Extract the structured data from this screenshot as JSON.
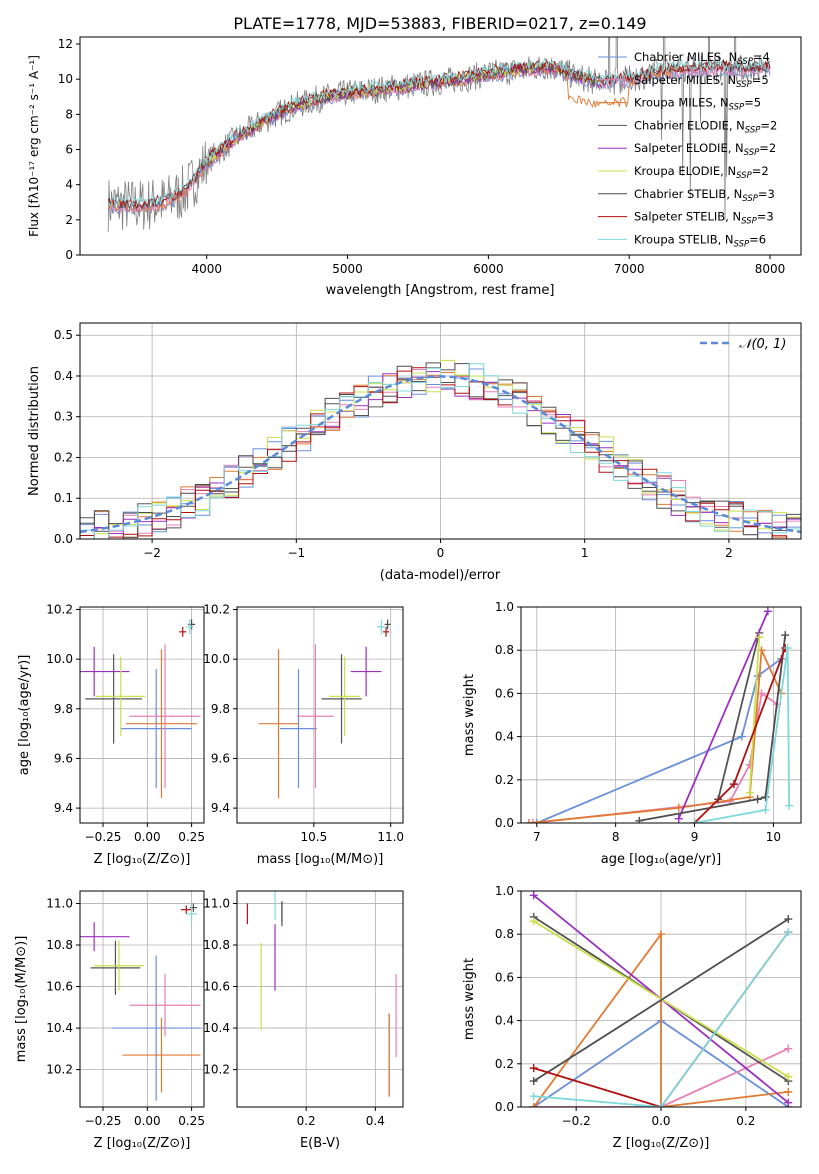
{
  "figure": {
    "title": "PLATE=1778, MJD=53883, FIBERID=0217, z=0.149"
  },
  "colors": {
    "axis": "#000000",
    "grid": "#b0b0b0",
    "gaussian": "#5b8bd6",
    "data_spectrum": "#7f7f7f",
    "series": {
      "chabrier_miles": "#6a8fd8",
      "salpeter_miles": "#e87fb5",
      "kroupa_miles": "#e07a33",
      "chabrier_elodie": "#555555",
      "salpeter_elodie": "#9b30c0",
      "kroupa_elodie": "#c9e04c",
      "chabrier_stelib": "#4d4d4d",
      "salpeter_stelib": "#b01010",
      "kroupa_stelib": "#7fd8dc"
    }
  },
  "legend_entries": [
    {
      "label": "Chabrier MILES, N",
      "sub": "SSP",
      "suffix": "=4",
      "key": "chabrier_miles"
    },
    {
      "label": "Salpeter MILES, N",
      "sub": "SSP",
      "suffix": "=5",
      "key": "salpeter_miles"
    },
    {
      "label": "Kroupa MILES, N",
      "sub": "SSP",
      "suffix": "=5",
      "key": "kroupa_miles"
    },
    {
      "label": "Chabrier ELODIE, N",
      "sub": "SSP",
      "suffix": "=2",
      "key": "chabrier_elodie"
    },
    {
      "label": "Salpeter ELODIE, N",
      "sub": "SSP",
      "suffix": "=2",
      "key": "salpeter_elodie"
    },
    {
      "label": "Kroupa ELODIE, N",
      "sub": "SSP",
      "suffix": "=2",
      "key": "kroupa_elodie"
    },
    {
      "label": "Chabrier STELIB, N",
      "sub": "SSP",
      "suffix": "=3",
      "key": "chabrier_stelib"
    },
    {
      "label": "Salpeter STELIB, N",
      "sub": "SSP",
      "suffix": "=3",
      "key": "salpeter_stelib"
    },
    {
      "label": "Kroupa STELIB, N",
      "sub": "SSP",
      "suffix": "=6",
      "key": "kroupa_stelib"
    }
  ],
  "chart_data": [
    {
      "id": "spectrum",
      "type": "line",
      "xlabel": "wavelength [Angstrom, rest frame]",
      "ylabel": "Flux [fλ10⁻¹⁷ erg cm⁻² s⁻¹ A⁻¹]",
      "xlim": [
        3100,
        8220
      ],
      "ylim": [
        0,
        12.4
      ],
      "xticks": [
        4000,
        5000,
        6000,
        7000,
        8000
      ],
      "yticks": [
        0,
        2,
        4,
        6,
        8,
        10,
        12
      ],
      "grid": false,
      "legend": "top-right",
      "continuum": {
        "x": [
          3300,
          3500,
          3700,
          3850,
          4000,
          4200,
          4400,
          4600,
          4800,
          5000,
          5200,
          5400,
          5600,
          5800,
          6000,
          6200,
          6400,
          6500,
          6600,
          6800,
          7000,
          7200,
          7400
        ],
        "y": [
          2.9,
          2.8,
          3.0,
          3.6,
          5.3,
          6.6,
          7.6,
          8.4,
          8.9,
          9.2,
          9.4,
          9.6,
          9.8,
          10.0,
          10.3,
          10.5,
          10.7,
          10.6,
          10.2,
          9.8,
          10.0,
          10.4,
          10.6
        ]
      }
    },
    {
      "id": "residual-histogram",
      "type": "bar",
      "xlabel": "(data-model)/error",
      "ylabel": "Normed distribution",
      "xlim": [
        -2.5,
        2.5
      ],
      "ylim": [
        0,
        0.53
      ],
      "xticks": [
        -2,
        -1,
        0,
        1,
        2
      ],
      "yticks": [
        0.0,
        0.1,
        0.2,
        0.3,
        0.4,
        0.5
      ],
      "grid": true,
      "legend": "top-right",
      "gaussian_label": "𝒩(0, 1)",
      "bin_width": 0.1,
      "bin_start": -2.5
    },
    {
      "id": "age-vs-Z",
      "type": "scatter",
      "xlabel": "Z [log₁₀(Z/Z⊙)]",
      "ylabel": "age  [log₁₀(age/yr)]",
      "xlim": [
        -0.38,
        0.32
      ],
      "ylim": [
        9.34,
        10.21
      ],
      "xticks": [
        -0.25,
        0.0,
        0.25
      ],
      "xticklabels": [
        "−0.25",
        "0.00",
        "0.25"
      ],
      "yticks": [
        9.4,
        9.6,
        9.8,
        10.0,
        10.2
      ],
      "grid": true,
      "points": [
        {
          "key": "chabrier_miles",
          "x": 0.05,
          "xerr": 0.2,
          "y": 9.72,
          "yerr": 0.24
        },
        {
          "key": "salpeter_miles",
          "x": 0.1,
          "xerr": 0.2,
          "y": 9.77,
          "yerr": 0.29
        },
        {
          "key": "kroupa_miles",
          "x": 0.08,
          "xerr": 0.2,
          "y": 9.74,
          "yerr": 0.3
        },
        {
          "key": "chabrier_elodie",
          "x": -0.19,
          "xerr": 0.16,
          "y": 9.84,
          "yerr": 0.18
        },
        {
          "key": "salpeter_elodie",
          "x": -0.3,
          "xerr": 0.2,
          "y": 9.95,
          "yerr": 0.1
        },
        {
          "key": "kroupa_elodie",
          "x": -0.15,
          "xerr": 0.14,
          "y": 9.85,
          "yerr": 0.16
        },
        {
          "key": "chabrier_stelib",
          "x": 0.25,
          "xerr": 0.02,
          "y": 10.14,
          "yerr": 0.02
        },
        {
          "key": "salpeter_stelib",
          "x": 0.2,
          "xerr": 0.02,
          "y": 10.11,
          "yerr": 0.02
        },
        {
          "key": "kroupa_stelib",
          "x": 0.24,
          "xerr": 0.02,
          "y": 10.13,
          "yerr": 0.03
        }
      ]
    },
    {
      "id": "age-vs-mass",
      "type": "scatter",
      "xlabel": "mass [log₁₀(M/M⊙)]",
      "xlim": [
        10.0,
        11.08
      ],
      "ylim": [
        9.34,
        10.21
      ],
      "xticks": [
        10.5,
        11.0
      ],
      "xticklabels": [
        "10.5",
        "11.0"
      ],
      "yticks": [
        9.4,
        9.6,
        9.8,
        10.0,
        10.2
      ],
      "grid": true,
      "points": [
        {
          "key": "chabrier_miles",
          "x": 10.4,
          "xerr": 0.12,
          "y": 9.72,
          "yerr": 0.24
        },
        {
          "key": "salpeter_miles",
          "x": 10.51,
          "xerr": 0.12,
          "y": 9.77,
          "yerr": 0.29
        },
        {
          "key": "kroupa_miles",
          "x": 10.27,
          "xerr": 0.13,
          "y": 9.74,
          "yerr": 0.3
        },
        {
          "key": "chabrier_elodie",
          "x": 10.68,
          "xerr": 0.13,
          "y": 9.84,
          "yerr": 0.18
        },
        {
          "key": "salpeter_elodie",
          "x": 10.84,
          "xerr": 0.1,
          "y": 9.95,
          "yerr": 0.1
        },
        {
          "key": "kroupa_elodie",
          "x": 10.7,
          "xerr": 0.1,
          "y": 9.85,
          "yerr": 0.16
        },
        {
          "key": "chabrier_stelib",
          "x": 10.98,
          "xerr": 0.02,
          "y": 10.14,
          "yerr": 0.02
        },
        {
          "key": "salpeter_stelib",
          "x": 10.97,
          "xerr": 0.02,
          "y": 10.11,
          "yerr": 0.02
        },
        {
          "key": "kroupa_stelib",
          "x": 10.94,
          "xerr": 0.03,
          "y": 10.13,
          "yerr": 0.03
        }
      ]
    },
    {
      "id": "mass-weight-vs-age",
      "type": "line",
      "xlabel": "age  [log₁₀(age/yr)]",
      "ylabel": "mass weight",
      "xlim": [
        6.8,
        10.35
      ],
      "ylim": [
        0,
        1.0
      ],
      "xticks": [
        7,
        8,
        9,
        10
      ],
      "yticks": [
        0.0,
        0.2,
        0.4,
        0.6,
        0.8,
        1.0
      ],
      "grid": true,
      "series": [
        {
          "key": "chabrier_miles",
          "x": [
            7.0,
            9.6,
            9.8,
            10.1
          ],
          "y": [
            0.0,
            0.4,
            0.68,
            0.76
          ]
        },
        {
          "key": "salpeter_miles",
          "x": [
            6.95,
            9.45,
            9.7,
            9.85,
            10.05
          ],
          "y": [
            0.0,
            0.1,
            0.27,
            0.6,
            0.55
          ]
        },
        {
          "key": "kroupa_miles",
          "x": [
            6.9,
            8.8,
            9.7,
            9.85,
            10.1
          ],
          "y": [
            0.0,
            0.07,
            0.12,
            0.8,
            0.6
          ]
        },
        {
          "key": "chabrier_elodie",
          "x": [
            9.3,
            9.82
          ],
          "y": [
            0.11,
            0.88
          ]
        },
        {
          "key": "salpeter_elodie",
          "x": [
            8.8,
            9.93
          ],
          "y": [
            0.02,
            0.98
          ]
        },
        {
          "key": "kroupa_elodie",
          "x": [
            9.7,
            9.82
          ],
          "y": [
            0.14,
            0.86
          ]
        },
        {
          "key": "chabrier_stelib",
          "x": [
            8.3,
            9.8,
            9.9,
            10.15
          ],
          "y": [
            0.01,
            0.11,
            0.12,
            0.87
          ]
        },
        {
          "key": "salpeter_stelib",
          "x": [
            9.0,
            9.5,
            10.15
          ],
          "y": [
            0.0,
            0.18,
            0.81
          ]
        },
        {
          "key": "kroupa_stelib",
          "x": [
            9.0,
            9.9,
            10.18,
            10.2
          ],
          "y": [
            0.0,
            0.06,
            0.81,
            0.08
          ]
        }
      ]
    },
    {
      "id": "mass-vs-Z",
      "type": "scatter",
      "xlabel": "Z [log₁₀(Z/Z⊙)]",
      "ylabel": "mass [log₁₀(M/M⊙)]",
      "xlim": [
        -0.38,
        0.32
      ],
      "ylim": [
        10.02,
        11.06
      ],
      "xticks": [
        -0.25,
        0.0,
        0.25
      ],
      "xticklabels": [
        "−0.25",
        "0.00",
        "0.25"
      ],
      "yticks": [
        10.2,
        10.4,
        10.6,
        10.8,
        11.0
      ],
      "grid": true,
      "points": [
        {
          "key": "chabrier_miles",
          "x": 0.05,
          "xerr": 0.25,
          "y": 10.4,
          "yerr": 0.35
        },
        {
          "key": "salpeter_miles",
          "x": 0.1,
          "xerr": 0.2,
          "y": 10.51,
          "yerr": 0.15
        },
        {
          "key": "kroupa_miles",
          "x": 0.08,
          "xerr": 0.22,
          "y": 10.27,
          "yerr": 0.18
        },
        {
          "key": "chabrier_elodie",
          "x": -0.18,
          "xerr": 0.14,
          "y": 10.69,
          "yerr": 0.13
        },
        {
          "key": "salpeter_elodie",
          "x": -0.3,
          "xerr": 0.2,
          "y": 10.84,
          "yerr": 0.07
        },
        {
          "key": "kroupa_elodie",
          "x": -0.16,
          "xerr": 0.14,
          "y": 10.7,
          "yerr": 0.12
        },
        {
          "key": "chabrier_stelib",
          "x": 0.26,
          "xerr": 0.02,
          "y": 10.98,
          "yerr": 0.02
        },
        {
          "key": "salpeter_stelib",
          "x": 0.22,
          "xerr": 0.03,
          "y": 10.97,
          "yerr": 0.02
        },
        {
          "key": "kroupa_stelib",
          "x": 0.25,
          "xerr": 0.03,
          "y": 10.95,
          "yerr": 0.04
        }
      ]
    },
    {
      "id": "mass-vs-EBV",
      "type": "scatter",
      "xlabel": "E(B-V)",
      "xlim": [
        0.0,
        0.48
      ],
      "ylim": [
        10.02,
        11.06
      ],
      "xticks": [
        0.2,
        0.4
      ],
      "xticklabels": [
        "0.2",
        "0.4"
      ],
      "yticks": [
        10.2,
        10.4,
        10.6,
        10.8,
        11.0
      ],
      "grid": true,
      "points": [
        {
          "key": "chabrier_miles",
          "x": 0.44,
          "xerr": 0.0,
          "y": 10.27,
          "yerr": 0.2
        },
        {
          "key": "salpeter_miles",
          "x": 0.46,
          "xerr": 0.0,
          "y": 10.46,
          "yerr": 0.2
        },
        {
          "key": "kroupa_miles",
          "x": 0.44,
          "xerr": 0.0,
          "y": 10.27,
          "yerr": 0.2
        },
        {
          "key": "chabrier_elodie",
          "x": 0.13,
          "xerr": 0.0,
          "y": 10.95,
          "yerr": 0.06
        },
        {
          "key": "salpeter_elodie",
          "x": 0.11,
          "xerr": 0.0,
          "y": 10.74,
          "yerr": 0.16
        },
        {
          "key": "kroupa_elodie",
          "x": 0.07,
          "xerr": 0.0,
          "y": 10.6,
          "yerr": 0.21
        },
        {
          "key": "chabrier_stelib",
          "x": 0.13,
          "xerr": 0.0,
          "y": 10.96,
          "yerr": 0.05
        },
        {
          "key": "salpeter_stelib",
          "x": 0.03,
          "xerr": 0.0,
          "y": 10.95,
          "yerr": 0.05
        },
        {
          "key": "kroupa_stelib",
          "x": 0.11,
          "xerr": 0.0,
          "y": 10.99,
          "yerr": 0.07
        }
      ]
    },
    {
      "id": "mass-weight-vs-Z",
      "type": "line",
      "xlabel": "Z [log₁₀(Z/Z⊙)]",
      "ylabel": "mass weight",
      "xlim": [
        -0.33,
        0.33
      ],
      "ylim": [
        0,
        1.0
      ],
      "xticks": [
        -0.2,
        0.0,
        0.2
      ],
      "xticklabels": [
        "−0.2",
        "0.0",
        "0.2"
      ],
      "yticks": [
        0.0,
        0.2,
        0.4,
        0.6,
        0.8,
        1.0
      ],
      "grid": true,
      "series": [
        {
          "key": "chabrier_miles",
          "x": [
            -0.3,
            0.0,
            0.3
          ],
          "y": [
            0.0,
            0.4,
            0.0
          ]
        },
        {
          "key": "salpeter_miles",
          "x": [
            -0.3,
            0.0,
            0.3
          ],
          "y": [
            0.0,
            0.0,
            0.27
          ]
        },
        {
          "key": "kroupa_miles",
          "x": [
            -0.3,
            0.0,
            0.0,
            0.3
          ],
          "y": [
            0.0,
            0.8,
            0.0,
            0.07
          ]
        },
        {
          "key": "chabrier_elodie",
          "x": [
            -0.3,
            0.3
          ],
          "y": [
            0.88,
            0.12
          ]
        },
        {
          "key": "salpeter_elodie",
          "x": [
            -0.3,
            0.3
          ],
          "y": [
            0.98,
            0.02
          ]
        },
        {
          "key": "kroupa_elodie",
          "x": [
            -0.3,
            0.3
          ],
          "y": [
            0.86,
            0.14
          ]
        },
        {
          "key": "chabrier_stelib",
          "x": [
            -0.3,
            0.3
          ],
          "y": [
            0.12,
            0.87
          ]
        },
        {
          "key": "salpeter_stelib",
          "x": [
            -0.3,
            0.0,
            0.3
          ],
          "y": [
            0.18,
            0.0,
            0.81
          ]
        },
        {
          "key": "kroupa_stelib",
          "x": [
            -0.3,
            0.0,
            0.3
          ],
          "y": [
            0.05,
            0.0,
            0.81
          ]
        }
      ]
    }
  ]
}
